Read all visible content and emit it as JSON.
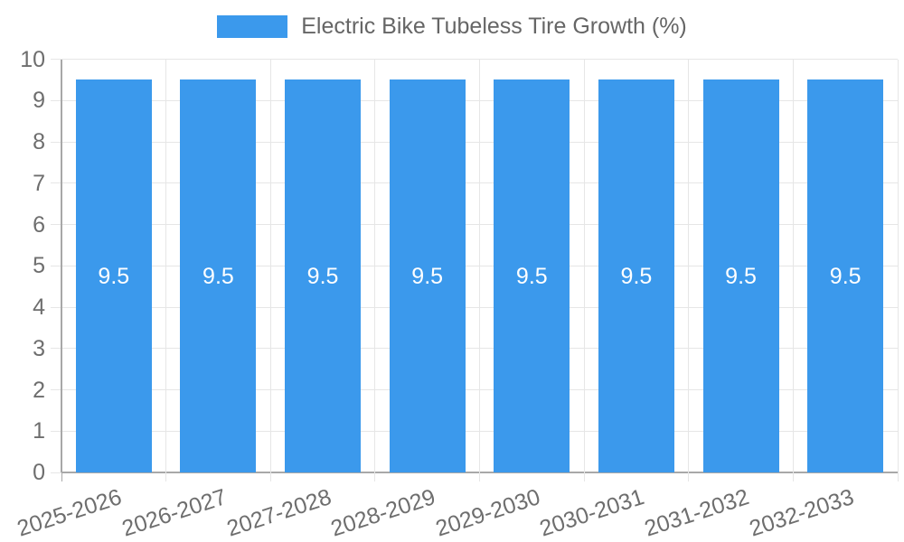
{
  "chart_data": {
    "type": "bar",
    "title": "",
    "legend_label": "Electric Bike Tubeless Tire Growth (%)",
    "legend_position": "top",
    "categories": [
      "2025-2026",
      "2026-2027",
      "2027-2028",
      "2028-2029",
      "2029-2030",
      "2030-2031",
      "2031-2032",
      "2032-2033"
    ],
    "values": [
      9.5,
      9.5,
      9.5,
      9.5,
      9.5,
      9.5,
      9.5,
      9.5
    ],
    "bar_value_labels": [
      "9.5",
      "9.5",
      "9.5",
      "9.5",
      "9.5",
      "9.5",
      "9.5",
      "9.5"
    ],
    "xlabel": "",
    "ylabel": "",
    "ylim": [
      0,
      10
    ],
    "ytick_step": 1,
    "ytick_labels": [
      "0",
      "1",
      "2",
      "3",
      "4",
      "5",
      "6",
      "7",
      "8",
      "9",
      "10"
    ],
    "grid": true,
    "x_label_rotation_deg": -18,
    "colors": {
      "bar": "#3B99EC",
      "grid_line": "#E6E6E6",
      "axis_line": "#A8A8A8",
      "tick_text": "#6E6E6E",
      "legend_text": "#666666",
      "bar_label_text": "#FFFFFF",
      "background": "#FFFFFF"
    }
  }
}
